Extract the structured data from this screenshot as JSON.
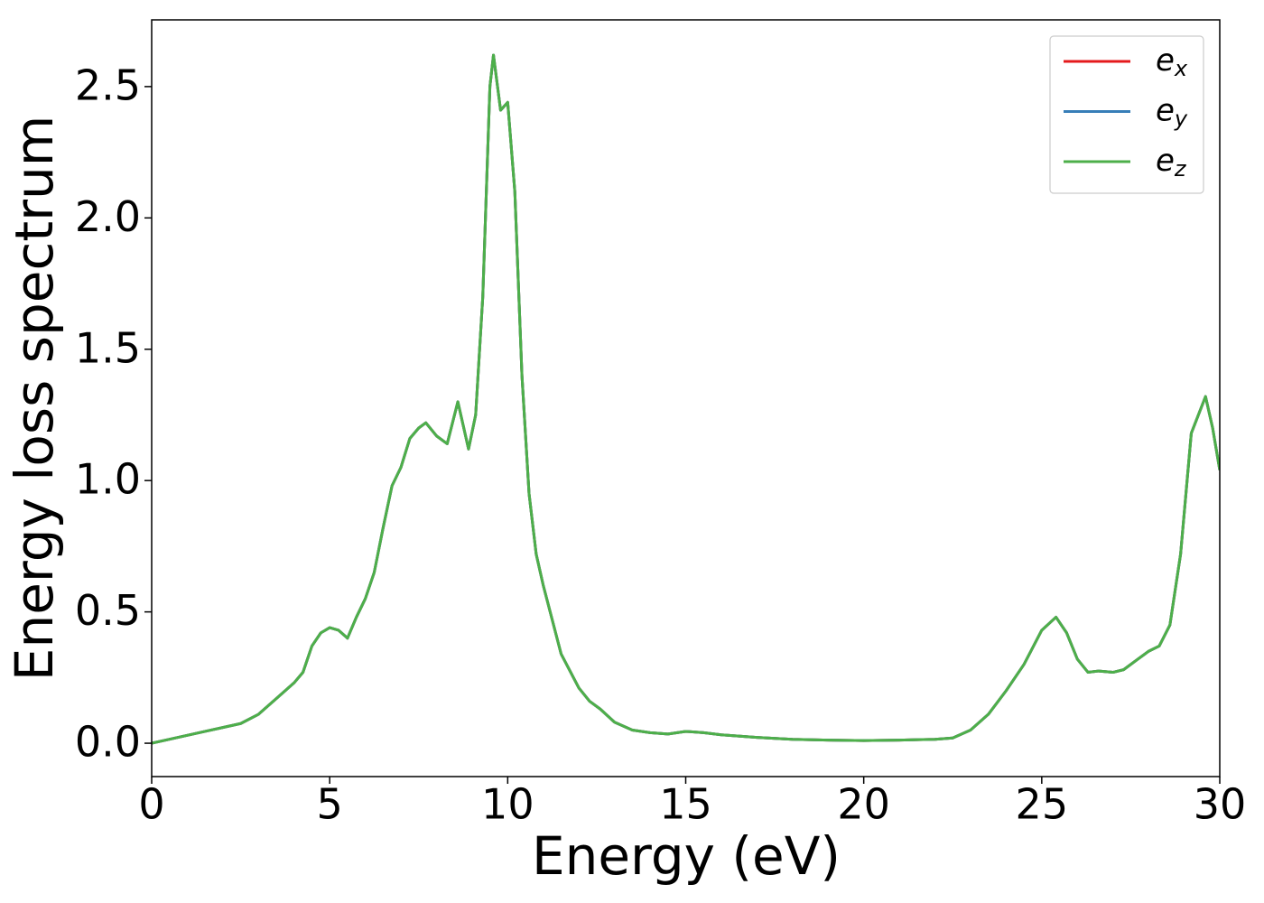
{
  "chart_data": {
    "type": "line",
    "xlabel": "Energy (eV)",
    "ylabel": "Energy loss spectrum",
    "x": [
      0,
      0.5,
      1,
      1.5,
      2,
      2.5,
      3,
      3.5,
      4,
      4.25,
      4.5,
      4.75,
      5,
      5.25,
      5.5,
      5.75,
      6,
      6.25,
      6.5,
      6.75,
      7,
      7.25,
      7.5,
      7.7,
      8,
      8.3,
      8.6,
      8.9,
      9.1,
      9.3,
      9.5,
      9.6,
      9.8,
      10,
      10.2,
      10.4,
      10.6,
      10.8,
      11,
      11.5,
      12,
      12.3,
      12.6,
      13,
      13.5,
      14,
      14.5,
      15,
      15.5,
      16,
      17,
      18,
      19,
      20,
      21,
      22,
      22.5,
      23,
      23.5,
      24,
      24.5,
      25,
      25.4,
      25.7,
      26,
      26.3,
      26.6,
      27,
      27.3,
      27.7,
      28,
      28.3,
      28.6,
      28.9,
      29.2,
      29.6,
      29.8,
      30
    ],
    "series": [
      {
        "name": "ex",
        "color": "#e41a1c",
        "values": [
          0,
          0.015,
          0.03,
          0.045,
          0.06,
          0.075,
          0.11,
          0.17,
          0.23,
          0.27,
          0.37,
          0.42,
          0.44,
          0.43,
          0.4,
          0.48,
          0.55,
          0.65,
          0.82,
          0.98,
          1.05,
          1.16,
          1.2,
          1.22,
          1.17,
          1.14,
          1.3,
          1.12,
          1.25,
          1.7,
          2.5,
          2.62,
          2.41,
          2.44,
          2.1,
          1.4,
          0.95,
          0.72,
          0.6,
          0.34,
          0.21,
          0.16,
          0.13,
          0.08,
          0.05,
          0.04,
          0.035,
          0.045,
          0.04,
          0.032,
          0.022,
          0.015,
          0.012,
          0.01,
          0.012,
          0.015,
          0.02,
          0.05,
          0.11,
          0.2,
          0.3,
          0.43,
          0.48,
          0.42,
          0.32,
          0.27,
          0.275,
          0.27,
          0.28,
          0.32,
          0.35,
          0.37,
          0.45,
          0.72,
          1.18,
          1.32,
          1.2,
          1.04
        ]
      },
      {
        "name": "ey",
        "color": "#377eb8",
        "values": [
          0,
          0.015,
          0.03,
          0.045,
          0.06,
          0.075,
          0.11,
          0.17,
          0.23,
          0.27,
          0.37,
          0.42,
          0.44,
          0.43,
          0.4,
          0.48,
          0.55,
          0.65,
          0.82,
          0.98,
          1.05,
          1.16,
          1.2,
          1.22,
          1.17,
          1.14,
          1.3,
          1.12,
          1.25,
          1.7,
          2.5,
          2.62,
          2.41,
          2.44,
          2.1,
          1.4,
          0.95,
          0.72,
          0.6,
          0.34,
          0.21,
          0.16,
          0.13,
          0.08,
          0.05,
          0.04,
          0.035,
          0.045,
          0.04,
          0.032,
          0.022,
          0.015,
          0.012,
          0.01,
          0.012,
          0.015,
          0.02,
          0.05,
          0.11,
          0.2,
          0.3,
          0.43,
          0.48,
          0.42,
          0.32,
          0.27,
          0.275,
          0.27,
          0.28,
          0.32,
          0.35,
          0.37,
          0.45,
          0.72,
          1.18,
          1.32,
          1.2,
          1.04
        ]
      },
      {
        "name": "ez",
        "color": "#4daf4a",
        "values": [
          0,
          0.015,
          0.03,
          0.045,
          0.06,
          0.075,
          0.11,
          0.17,
          0.23,
          0.27,
          0.37,
          0.42,
          0.44,
          0.43,
          0.4,
          0.48,
          0.55,
          0.65,
          0.82,
          0.98,
          1.05,
          1.16,
          1.2,
          1.22,
          1.17,
          1.14,
          1.3,
          1.12,
          1.25,
          1.7,
          2.5,
          2.62,
          2.41,
          2.44,
          2.1,
          1.4,
          0.95,
          0.72,
          0.6,
          0.34,
          0.21,
          0.16,
          0.13,
          0.08,
          0.05,
          0.04,
          0.035,
          0.045,
          0.04,
          0.032,
          0.022,
          0.015,
          0.012,
          0.01,
          0.012,
          0.015,
          0.02,
          0.05,
          0.11,
          0.2,
          0.3,
          0.43,
          0.48,
          0.42,
          0.32,
          0.27,
          0.275,
          0.27,
          0.28,
          0.32,
          0.35,
          0.37,
          0.45,
          0.72,
          1.18,
          1.32,
          1.2,
          1.04
        ]
      }
    ],
    "xlim": [
      0,
      30
    ],
    "xticks": [
      0,
      5,
      10,
      15,
      20,
      25,
      30
    ],
    "ylim": [
      -0.127,
      2.754
    ],
    "yticks": [
      {
        "value": 0,
        "label": "0.0"
      },
      0.5,
      {
        "value": 1,
        "label": "1.0"
      },
      1.5,
      {
        "value": 2,
        "label": "2.0"
      },
      2.5
    ],
    "grid": false,
    "legend": "upper right"
  }
}
